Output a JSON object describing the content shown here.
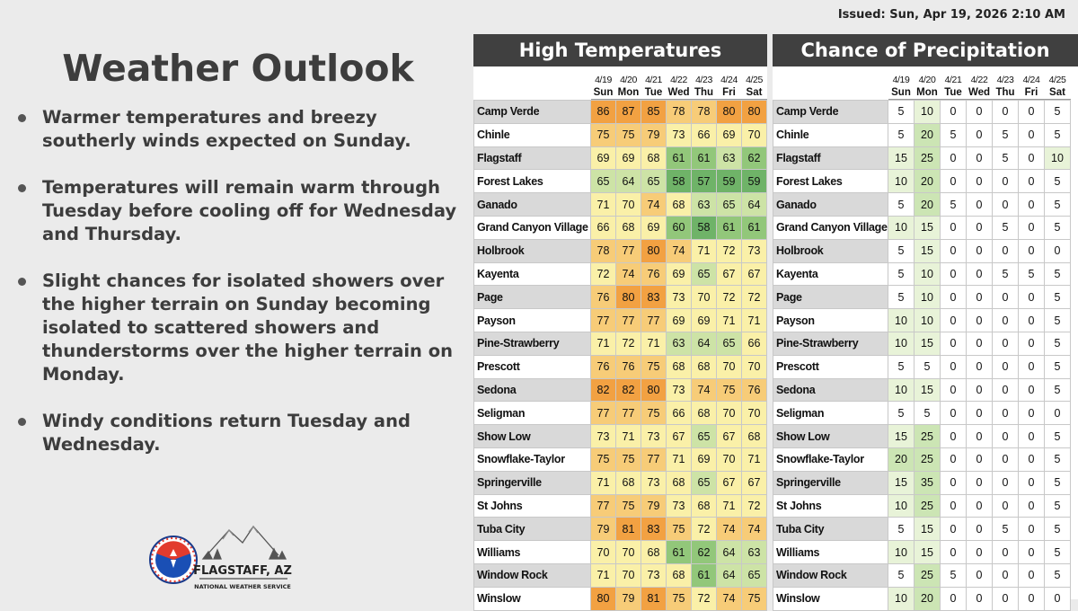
{
  "issued": "Issued: Sun, Apr 19, 2026 2:10 AM",
  "title": "Weather Outlook",
  "bullets": [
    "Warmer temperatures and breezy southerly winds expected on Sunday.",
    "Temperatures will remain warm through Tuesday before cooling off for Wednesday and Thursday.",
    "Slight chances for isolated showers over the higher terrain on Sunday becoming isolated to scattered showers and thunderstorms over the higher terrain on Monday.",
    "Windy conditions return Tuesday and Wednesday."
  ],
  "logo": {
    "seal_text": "NATIONAL WEATHER SERVICE",
    "office": "FLAGSTAFF, AZ",
    "agency": "NATIONAL WEATHER SERVICE"
  },
  "high_temps": {
    "header": "High Temperatures",
    "dates": [
      "4/19",
      "4/20",
      "4/21",
      "4/22",
      "4/23",
      "4/24",
      "4/25"
    ],
    "days": [
      "Sun",
      "Mon",
      "Tue",
      "Wed",
      "Thu",
      "Fri",
      "Sat"
    ]
  },
  "precip": {
    "header": "Chance of Precipitation",
    "dates": [
      "4/19",
      "4/20",
      "4/21",
      "4/22",
      "4/23",
      "4/24",
      "4/25"
    ],
    "days": [
      "Sun",
      "Mon",
      "Tue",
      "Wed",
      "Thu",
      "Fri",
      "Sat"
    ]
  },
  "locations": [
    {
      "name": "Camp Verde",
      "highs": [
        86,
        87,
        85,
        78,
        78,
        80,
        80
      ],
      "pop": [
        5,
        10,
        0,
        0,
        0,
        0,
        5
      ]
    },
    {
      "name": "Chinle",
      "highs": [
        75,
        75,
        79,
        73,
        66,
        69,
        70
      ],
      "pop": [
        5,
        20,
        5,
        0,
        5,
        0,
        5
      ]
    },
    {
      "name": "Flagstaff",
      "highs": [
        69,
        69,
        68,
        61,
        61,
        63,
        62
      ],
      "pop": [
        15,
        25,
        0,
        0,
        5,
        0,
        10
      ]
    },
    {
      "name": "Forest Lakes",
      "highs": [
        65,
        64,
        65,
        58,
        57,
        59,
        59
      ],
      "pop": [
        10,
        20,
        0,
        0,
        0,
        0,
        5
      ]
    },
    {
      "name": "Ganado",
      "highs": [
        71,
        70,
        74,
        68,
        63,
        65,
        64
      ],
      "pop": [
        5,
        20,
        5,
        0,
        0,
        0,
        5
      ]
    },
    {
      "name": "Grand Canyon Village",
      "highs": [
        66,
        68,
        69,
        60,
        58,
        61,
        61
      ],
      "pop": [
        10,
        15,
        0,
        0,
        5,
        0,
        5
      ]
    },
    {
      "name": "Holbrook",
      "highs": [
        78,
        77,
        80,
        74,
        71,
        72,
        73
      ],
      "pop": [
        5,
        15,
        0,
        0,
        0,
        0,
        0
      ]
    },
    {
      "name": "Kayenta",
      "highs": [
        72,
        74,
        76,
        69,
        65,
        67,
        67
      ],
      "pop": [
        5,
        10,
        0,
        0,
        5,
        5,
        5
      ]
    },
    {
      "name": "Page",
      "highs": [
        76,
        80,
        83,
        73,
        70,
        72,
        72
      ],
      "pop": [
        5,
        10,
        0,
        0,
        0,
        0,
        5
      ]
    },
    {
      "name": "Payson",
      "highs": [
        77,
        77,
        77,
        69,
        69,
        71,
        71
      ],
      "pop": [
        10,
        10,
        0,
        0,
        0,
        0,
        5
      ]
    },
    {
      "name": "Pine-Strawberry",
      "highs": [
        71,
        72,
        71,
        63,
        64,
        65,
        66
      ],
      "pop": [
        10,
        15,
        0,
        0,
        0,
        0,
        5
      ]
    },
    {
      "name": "Prescott",
      "highs": [
        76,
        76,
        75,
        68,
        68,
        70,
        70
      ],
      "pop": [
        5,
        5,
        0,
        0,
        0,
        0,
        5
      ]
    },
    {
      "name": "Sedona",
      "highs": [
        82,
        82,
        80,
        73,
        74,
        75,
        76
      ],
      "pop": [
        10,
        15,
        0,
        0,
        0,
        0,
        5
      ]
    },
    {
      "name": "Seligman",
      "highs": [
        77,
        77,
        75,
        66,
        68,
        70,
        70
      ],
      "pop": [
        5,
        5,
        0,
        0,
        0,
        0,
        0
      ]
    },
    {
      "name": "Show Low",
      "highs": [
        73,
        71,
        73,
        67,
        65,
        67,
        68
      ],
      "pop": [
        15,
        25,
        0,
        0,
        0,
        0,
        5
      ]
    },
    {
      "name": "Snowflake-Taylor",
      "highs": [
        75,
        75,
        77,
        71,
        69,
        70,
        71
      ],
      "pop": [
        20,
        25,
        0,
        0,
        0,
        0,
        5
      ]
    },
    {
      "name": "Springerville",
      "highs": [
        71,
        68,
        73,
        68,
        65,
        67,
        67
      ],
      "pop": [
        15,
        35,
        0,
        0,
        0,
        0,
        5
      ]
    },
    {
      "name": "St Johns",
      "highs": [
        77,
        75,
        79,
        73,
        68,
        71,
        72
      ],
      "pop": [
        10,
        25,
        0,
        0,
        0,
        0,
        5
      ]
    },
    {
      "name": "Tuba City",
      "highs": [
        79,
        81,
        83,
        75,
        72,
        74,
        74
      ],
      "pop": [
        5,
        15,
        0,
        0,
        5,
        0,
        5
      ]
    },
    {
      "name": "Williams",
      "highs": [
        70,
        70,
        68,
        61,
        62,
        64,
        63
      ],
      "pop": [
        10,
        15,
        0,
        0,
        0,
        0,
        5
      ]
    },
    {
      "name": "Window Rock",
      "highs": [
        71,
        70,
        73,
        68,
        61,
        64,
        65
      ],
      "pop": [
        5,
        25,
        5,
        0,
        0,
        0,
        5
      ]
    },
    {
      "name": "Winslow",
      "highs": [
        80,
        79,
        81,
        75,
        72,
        74,
        75
      ],
      "pop": [
        10,
        20,
        0,
        0,
        0,
        0,
        0
      ]
    }
  ],
  "colors": {
    "row_alt": "#d9d9d9",
    "temp_hot": "#f2a142",
    "temp_warm": "#f7cc78",
    "temp_mild": "#faf0a8",
    "temp_cool": "#cde3a6",
    "temp_cold": "#92c77a",
    "temp_coldest": "#6fb368",
    "pop_10_15": "#e8f3d8",
    "pop_20_plus": "#cce5b4"
  }
}
